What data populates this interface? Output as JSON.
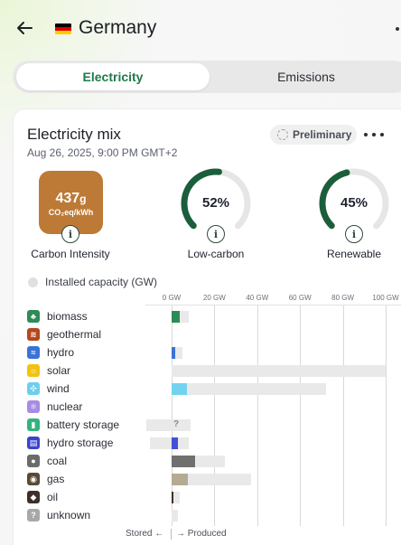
{
  "header": {
    "country": "Germany",
    "flag_colors": [
      "#000000",
      "#dd0000",
      "#ffce00"
    ]
  },
  "tabs": [
    {
      "label": "Electricity",
      "active": true
    },
    {
      "label": "Emissions",
      "active": false
    }
  ],
  "mix": {
    "title": "Electricity mix",
    "date": "Aug 26, 2025, 9:00 PM GMT+2",
    "status_badge": "Preliminary"
  },
  "metrics": {
    "carbon_intensity": {
      "value": "437",
      "unit_suffix": "g",
      "unit": "CO₂eq/kWh",
      "label": "Carbon Intensity",
      "color": "#bd7a36"
    },
    "low_carbon": {
      "value": "52%",
      "fraction": 0.52,
      "label": "Low-carbon",
      "color": "#1b5e3b"
    },
    "renewable": {
      "value": "45%",
      "fraction": 0.45,
      "label": "Renewable",
      "color": "#1b5e3b"
    }
  },
  "capacity_toggle": {
    "label": "Installed capacity (GW)",
    "checked": false
  },
  "chart_data": {
    "type": "bar",
    "axis_ticks": [
      "0 GW",
      "20 GW",
      "40 GW",
      "60 GW",
      "80 GW",
      "100 GW"
    ],
    "xlim": [
      0,
      100
    ],
    "units": "GW",
    "series": [
      {
        "name": "Produced",
        "values": [
          4,
          0,
          1.5,
          0,
          7,
          0,
          0,
          3,
          11,
          7.5,
          0.5,
          0
        ]
      },
      {
        "name": "Installed capacity (GW)",
        "values": [
          8,
          0,
          5,
          100,
          72,
          0,
          9,
          8,
          25,
          37,
          4,
          3
        ]
      },
      {
        "name": "Stored",
        "values": [
          0,
          0,
          0,
          0,
          0,
          0,
          12,
          10,
          0,
          0,
          0,
          0
        ]
      }
    ],
    "categories": [
      "biomass",
      "geothermal",
      "hydro",
      "solar",
      "wind",
      "nuclear",
      "battery storage",
      "hydro storage",
      "coal",
      "gas",
      "oil",
      "unknown"
    ]
  },
  "sources": [
    {
      "label": "biomass",
      "icon": "leaf-icon",
      "glyph": "♣",
      "color": "#2e8b57",
      "prod_color": "#2e8b57"
    },
    {
      "label": "geothermal",
      "icon": "heat-icon",
      "glyph": "≋",
      "color": "#b5471e",
      "prod_color": "#b5471e"
    },
    {
      "label": "hydro",
      "icon": "water-icon",
      "glyph": "≈",
      "color": "#3a73d6",
      "prod_color": "#3a73d6"
    },
    {
      "label": "solar",
      "icon": "sun-icon",
      "glyph": "☼",
      "color": "#f4c20d",
      "prod_color": "#f4c20d"
    },
    {
      "label": "wind",
      "icon": "wind-turbine-icon",
      "glyph": "✣",
      "color": "#6ccfee",
      "prod_color": "#72d3ef"
    },
    {
      "label": "nuclear",
      "icon": "atom-icon",
      "glyph": "⚛",
      "color": "#a78be4",
      "prod_color": "#a78be4"
    },
    {
      "label": "battery storage",
      "icon": "battery-icon",
      "glyph": "▮",
      "color": "#35b37e",
      "prod_color": "#35b37e"
    },
    {
      "label": "hydro storage",
      "icon": "dam-icon",
      "glyph": "▤",
      "color": "#3b45c9",
      "prod_color": "#4052d6"
    },
    {
      "label": "coal",
      "icon": "coal-icon",
      "glyph": "●",
      "color": "#6b6b6b",
      "prod_color": "#707070"
    },
    {
      "label": "gas",
      "icon": "flame-icon",
      "glyph": "◉",
      "color": "#5a4a33",
      "prod_color": "#b5ab93"
    },
    {
      "label": "oil",
      "icon": "oil-drop-icon",
      "glyph": "◆",
      "color": "#3d3029",
      "prod_color": "#3d3029"
    },
    {
      "label": "unknown",
      "icon": "question-icon",
      "glyph": "?",
      "color": "#a8a8a8",
      "prod_color": "#a8a8a8"
    }
  ],
  "battery_unknown_marker": "?",
  "footer": {
    "stored": "Stored ←",
    "produced": "→ Produced"
  }
}
